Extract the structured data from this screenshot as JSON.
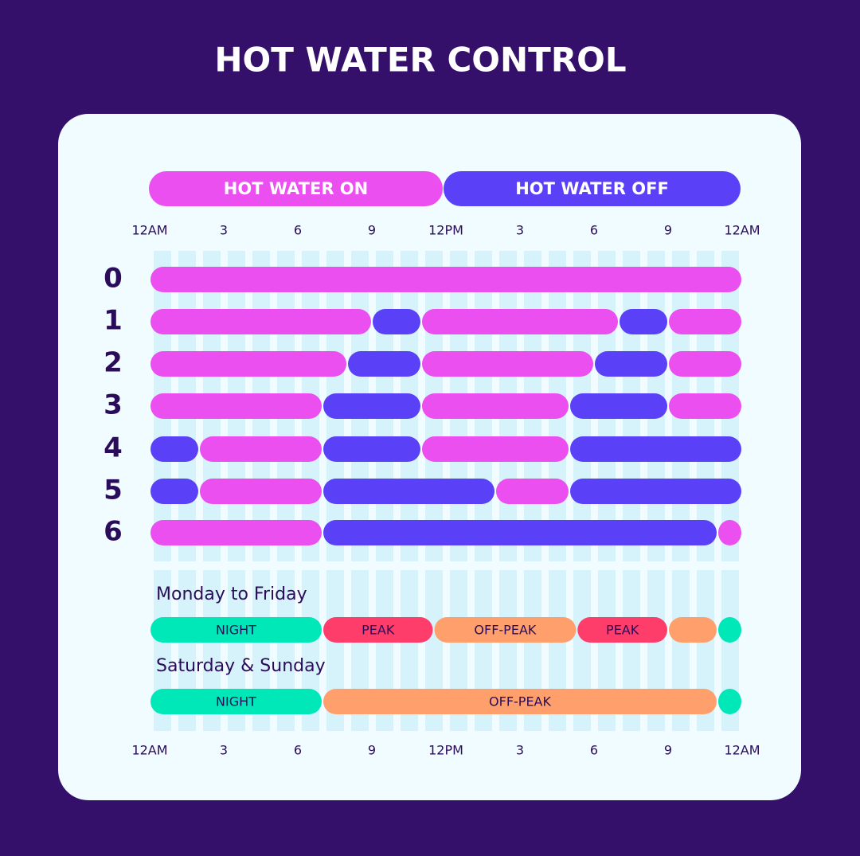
{
  "title": "HOT WATER CONTROL",
  "legend": [
    {
      "label": "HOT WATER ON",
      "color": "#ec4ff0"
    },
    {
      "label": "HOT WATER OFF",
      "color": "#5a41f8"
    }
  ],
  "time_axis": {
    "range": [
      0,
      24
    ],
    "ticks": [
      {
        "value": 0,
        "label": "12AM"
      },
      3,
      6,
      9,
      {
        "value": 12,
        "label": "12PM"
      },
      {
        "value": 15,
        "label": "3"
      },
      {
        "value": 18,
        "label": "6"
      },
      {
        "value": 21,
        "label": "9"
      },
      {
        "value": 24,
        "label": "12AM"
      }
    ]
  },
  "programs": [
    {
      "label": "0",
      "segments": [
        {
          "start": 0,
          "end": 24,
          "on": true
        }
      ]
    },
    {
      "label": "1",
      "segments": [
        {
          "start": 0,
          "end": 9,
          "on": true
        },
        {
          "start": 9,
          "end": 11,
          "on": false
        },
        {
          "start": 11,
          "end": 19,
          "on": true
        },
        {
          "start": 19,
          "end": 21,
          "on": false
        },
        {
          "start": 21,
          "end": 24,
          "on": true
        }
      ]
    },
    {
      "label": "2",
      "segments": [
        {
          "start": 0,
          "end": 8,
          "on": true
        },
        {
          "start": 8,
          "end": 11,
          "on": false
        },
        {
          "start": 11,
          "end": 18,
          "on": true
        },
        {
          "start": 18,
          "end": 21,
          "on": false
        },
        {
          "start": 21,
          "end": 24,
          "on": true
        }
      ]
    },
    {
      "label": "3",
      "segments": [
        {
          "start": 0,
          "end": 7,
          "on": true
        },
        {
          "start": 7,
          "end": 11,
          "on": false
        },
        {
          "start": 11,
          "end": 17,
          "on": true
        },
        {
          "start": 17,
          "end": 21,
          "on": false
        },
        {
          "start": 21,
          "end": 24,
          "on": true
        }
      ]
    },
    {
      "label": "4",
      "segments": [
        {
          "start": 0,
          "end": 2,
          "on": false
        },
        {
          "start": 2,
          "end": 7,
          "on": true
        },
        {
          "start": 7,
          "end": 11,
          "on": false
        },
        {
          "start": 11,
          "end": 17,
          "on": true
        },
        {
          "start": 17,
          "end": 24,
          "on": false
        }
      ]
    },
    {
      "label": "5",
      "segments": [
        {
          "start": 0,
          "end": 2,
          "on": false
        },
        {
          "start": 2,
          "end": 7,
          "on": true
        },
        {
          "start": 7,
          "end": 14,
          "on": false
        },
        {
          "start": 14,
          "end": 17,
          "on": true
        },
        {
          "start": 17,
          "end": 24,
          "on": false
        }
      ]
    },
    {
      "label": "6",
      "segments": [
        {
          "start": 0,
          "end": 7,
          "on": true
        },
        {
          "start": 7,
          "end": 23,
          "on": false
        },
        {
          "start": 23,
          "end": 24,
          "on": true
        }
      ]
    }
  ],
  "tariff_colors": {
    "night": "#00e8b8",
    "peak": "#ff3d6b",
    "offpeak": "#ffa06c"
  },
  "tariffs": [
    {
      "label": "Monday to Friday",
      "segments": [
        {
          "kind": "night",
          "label": "NIGHT",
          "start": 0,
          "end": 7
        },
        {
          "kind": "peak",
          "label": "PEAK",
          "start": 7,
          "end": 11.5
        },
        {
          "kind": "offpeak",
          "label": "OFF-PEAK",
          "start": 11.5,
          "end": 17.3
        },
        {
          "kind": "peak",
          "label": "PEAK",
          "start": 17.3,
          "end": 21
        },
        {
          "kind": "offpeak",
          "start": 21,
          "end": 23
        },
        {
          "kind": "night",
          "start": 23,
          "end": 24
        }
      ]
    },
    {
      "label": "Saturday & Sunday",
      "segments": [
        {
          "kind": "night",
          "label": "NIGHT",
          "start": 0,
          "end": 7
        },
        {
          "kind": "offpeak",
          "label": "OFF-PEAK",
          "start": 7,
          "end": 23
        },
        {
          "kind": "night",
          "start": 23,
          "end": 24
        }
      ]
    }
  ]
}
